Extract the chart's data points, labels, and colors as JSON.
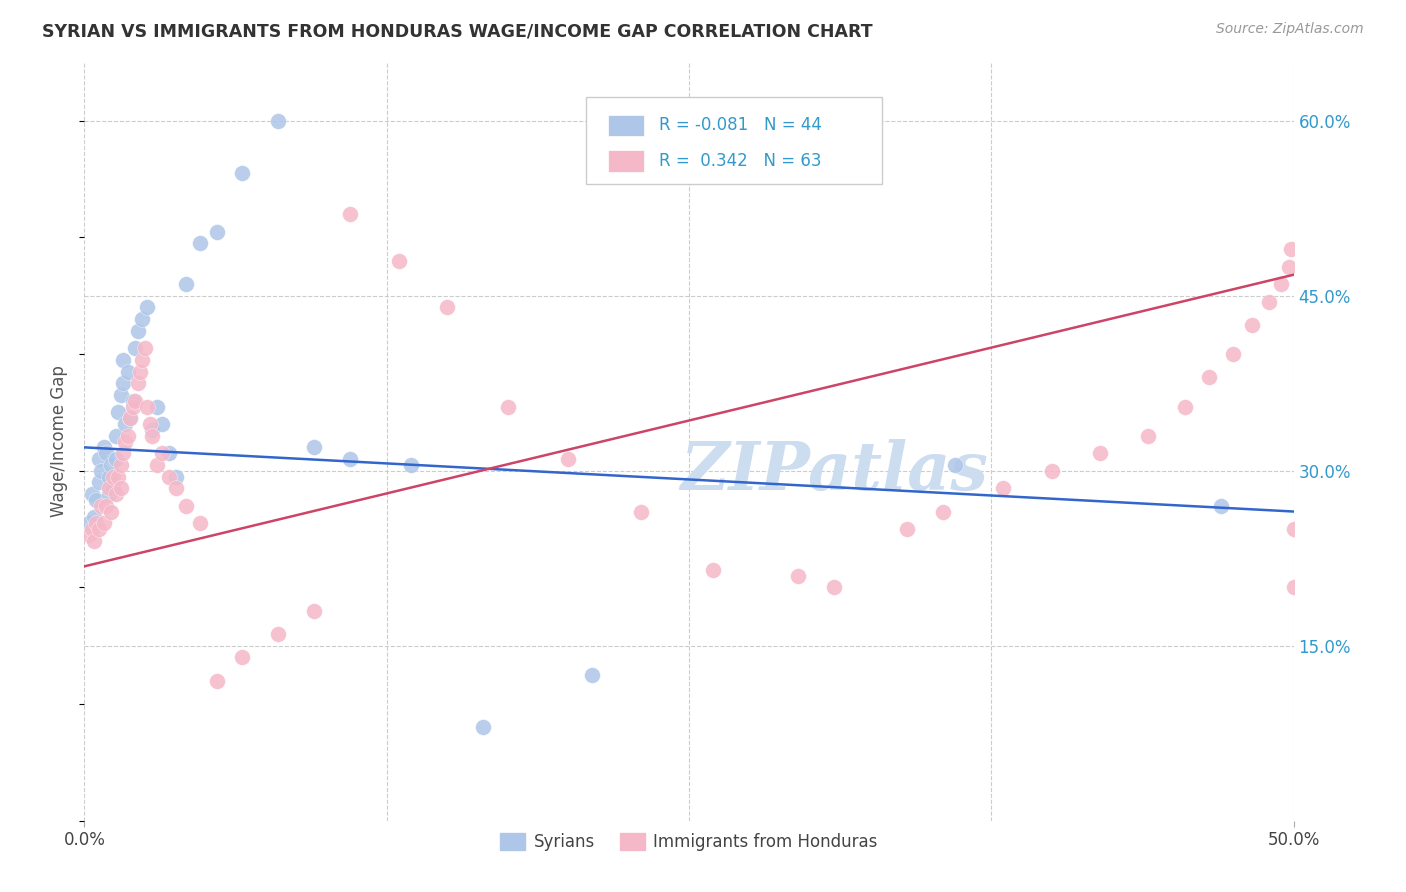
{
  "title": "SYRIAN VS IMMIGRANTS FROM HONDURAS WAGE/INCOME GAP CORRELATION CHART",
  "source": "Source: ZipAtlas.com",
  "ylabel": "Wage/Income Gap",
  "ytick_labels": [
    "15.0%",
    "30.0%",
    "45.0%",
    "60.0%"
  ],
  "ytick_values": [
    0.15,
    0.3,
    0.45,
    0.6
  ],
  "xlim": [
    0.0,
    0.5
  ],
  "ylim": [
    0.0,
    0.65
  ],
  "legend_r_blue": "-0.081",
  "legend_n_blue": "44",
  "legend_r_pink": "0.342",
  "legend_n_pink": "63",
  "blue_color": "#aec6e8",
  "pink_color": "#f5b8c8",
  "line_blue": "#3366cc",
  "line_pink": "#cc4466",
  "watermark": "ZIPatlas",
  "watermark_color": "#ccddf0",
  "blue_line_start_y": 0.32,
  "blue_line_end_y": 0.265,
  "pink_line_start_y": 0.218,
  "pink_line_end_y": 0.468,
  "grid_color": "#cccccc",
  "grid_style": "--",
  "xtick_positions": [
    0.0,
    0.125,
    0.25,
    0.375,
    0.5
  ],
  "syrians_x": [
    0.002,
    0.003,
    0.004,
    0.005,
    0.006,
    0.006,
    0.007,
    0.008,
    0.009,
    0.01,
    0.01,
    0.011,
    0.012,
    0.013,
    0.013,
    0.014,
    0.015,
    0.016,
    0.016,
    0.017,
    0.018,
    0.019,
    0.02,
    0.021,
    0.022,
    0.024,
    0.026,
    0.028,
    0.03,
    0.032,
    0.035,
    0.038,
    0.042,
    0.048,
    0.055,
    0.065,
    0.08,
    0.095,
    0.11,
    0.135,
    0.165,
    0.21,
    0.36,
    0.47
  ],
  "syrians_y": [
    0.255,
    0.28,
    0.26,
    0.275,
    0.31,
    0.29,
    0.3,
    0.32,
    0.315,
    0.295,
    0.28,
    0.305,
    0.285,
    0.31,
    0.33,
    0.35,
    0.365,
    0.375,
    0.395,
    0.34,
    0.385,
    0.345,
    0.36,
    0.405,
    0.42,
    0.43,
    0.44,
    0.335,
    0.355,
    0.34,
    0.315,
    0.295,
    0.46,
    0.495,
    0.505,
    0.555,
    0.6,
    0.32,
    0.31,
    0.305,
    0.08,
    0.125,
    0.305,
    0.27
  ],
  "honduras_x": [
    0.002,
    0.003,
    0.004,
    0.005,
    0.006,
    0.007,
    0.008,
    0.009,
    0.01,
    0.011,
    0.012,
    0.013,
    0.014,
    0.015,
    0.015,
    0.016,
    0.017,
    0.018,
    0.019,
    0.02,
    0.021,
    0.022,
    0.023,
    0.024,
    0.025,
    0.026,
    0.027,
    0.028,
    0.03,
    0.032,
    0.035,
    0.038,
    0.042,
    0.048,
    0.055,
    0.065,
    0.08,
    0.095,
    0.11,
    0.13,
    0.15,
    0.175,
    0.2,
    0.23,
    0.26,
    0.295,
    0.31,
    0.34,
    0.355,
    0.38,
    0.4,
    0.42,
    0.44,
    0.455,
    0.465,
    0.475,
    0.483,
    0.49,
    0.495,
    0.498,
    0.499,
    0.5,
    0.5
  ],
  "honduras_y": [
    0.245,
    0.25,
    0.24,
    0.255,
    0.25,
    0.27,
    0.255,
    0.27,
    0.285,
    0.265,
    0.295,
    0.28,
    0.295,
    0.285,
    0.305,
    0.315,
    0.325,
    0.33,
    0.345,
    0.355,
    0.36,
    0.375,
    0.385,
    0.395,
    0.405,
    0.355,
    0.34,
    0.33,
    0.305,
    0.315,
    0.295,
    0.285,
    0.27,
    0.255,
    0.12,
    0.14,
    0.16,
    0.18,
    0.52,
    0.48,
    0.44,
    0.355,
    0.31,
    0.265,
    0.215,
    0.21,
    0.2,
    0.25,
    0.265,
    0.285,
    0.3,
    0.315,
    0.33,
    0.355,
    0.38,
    0.4,
    0.425,
    0.445,
    0.46,
    0.475,
    0.49,
    0.25,
    0.2
  ]
}
